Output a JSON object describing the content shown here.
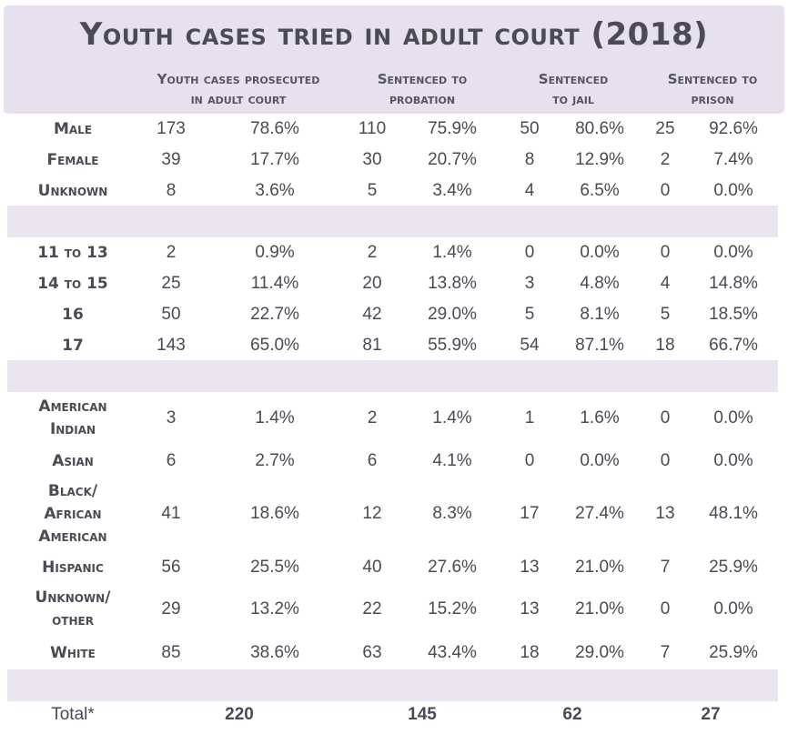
{
  "title": "Youth cases tried in adult court (2018)",
  "columns": [
    {
      "line1": "Youth cases prosecuted",
      "line2": "in adult court"
    },
    {
      "line1": "Sentenced to",
      "line2": "probation"
    },
    {
      "line1": "Sentenced",
      "line2": "to jail"
    },
    {
      "line1": "Sentenced to",
      "line2": "prison"
    }
  ],
  "colors": {
    "header_bg": "#e6e0ef",
    "band_bg": "#ebe5f2",
    "text": "#4a4a55"
  },
  "chart_data": {
    "type": "table",
    "title": "Youth cases tried in adult court (2018)",
    "columns": [
      "Youth cases prosecuted in adult court",
      "Sentenced to probation",
      "Sentenced to jail",
      "Sentenced to prison"
    ],
    "groups": [
      {
        "rows": [
          {
            "label": [
              "Male"
            ],
            "values": [
              "173",
              "78.6%",
              "110",
              "75.9%",
              "50",
              "80.6%",
              "25",
              "92.6%"
            ]
          },
          {
            "label": [
              "Female"
            ],
            "values": [
              "39",
              "17.7%",
              "30",
              "20.7%",
              "8",
              "12.9%",
              "2",
              "7.4%"
            ]
          },
          {
            "label": [
              "Unknown"
            ],
            "values": [
              "8",
              "3.6%",
              "5",
              "3.4%",
              "4",
              "6.5%",
              "0",
              "0.0%"
            ]
          }
        ]
      },
      {
        "rows": [
          {
            "label": [
              "11 to 13"
            ],
            "values": [
              "2",
              "0.9%",
              "2",
              "1.4%",
              "0",
              "0.0%",
              "0",
              "0.0%"
            ]
          },
          {
            "label": [
              "14 to 15"
            ],
            "values": [
              "25",
              "11.4%",
              "20",
              "13.8%",
              "3",
              "4.8%",
              "4",
              "14.8%"
            ]
          },
          {
            "label": [
              "16"
            ],
            "values": [
              "50",
              "22.7%",
              "42",
              "29.0%",
              "5",
              "8.1%",
              "5",
              "18.5%"
            ]
          },
          {
            "label": [
              "17"
            ],
            "values": [
              "143",
              "65.0%",
              "81",
              "55.9%",
              "54",
              "87.1%",
              "18",
              "66.7%"
            ]
          }
        ]
      },
      {
        "rows": [
          {
            "label": [
              "American",
              "Indian"
            ],
            "values": [
              "3",
              "1.4%",
              "2",
              "1.4%",
              "1",
              "1.6%",
              "0",
              "0.0%"
            ]
          },
          {
            "label": [
              "Asian"
            ],
            "values": [
              "6",
              "2.7%",
              "6",
              "4.1%",
              "0",
              "0.0%",
              "0",
              "0.0%"
            ]
          },
          {
            "label": [
              "Black/",
              "African",
              "American"
            ],
            "values": [
              "41",
              "18.6%",
              "12",
              "8.3%",
              "17",
              "27.4%",
              "13",
              "48.1%"
            ]
          },
          {
            "label": [
              "Hispanic"
            ],
            "values": [
              "56",
              "25.5%",
              "40",
              "27.6%",
              "13",
              "21.0%",
              "7",
              "25.9%"
            ]
          },
          {
            "label": [
              "Unknown/",
              "other"
            ],
            "values": [
              "29",
              "13.2%",
              "22",
              "15.2%",
              "13",
              "21.0%",
              "0",
              "0.0%"
            ]
          },
          {
            "label": [
              "White"
            ],
            "values": [
              "85",
              "38.6%",
              "63",
              "43.4%",
              "18",
              "29.0%",
              "7",
              "25.9%"
            ]
          }
        ]
      }
    ],
    "total": {
      "label": "Total*",
      "values": [
        "220",
        "145",
        "62",
        "27"
      ]
    }
  }
}
